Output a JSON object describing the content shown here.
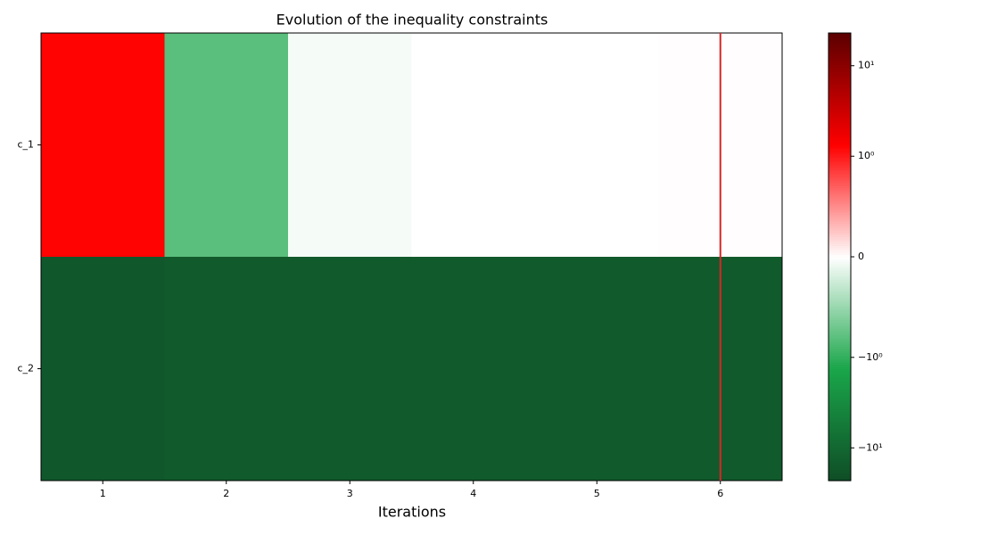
{
  "chart_data": {
    "type": "heatmap",
    "title": "Evolution of the inequality constraints",
    "xlabel": "Iterations",
    "x": [
      1,
      2,
      3,
      4,
      5,
      6
    ],
    "xlim": [
      0.5,
      6.5
    ],
    "xticks": [
      1,
      2,
      3,
      4,
      5,
      6
    ],
    "y_categories": [
      "c_1",
      "c_2"
    ],
    "values": [
      [
        1.3,
        -0.8,
        -0.05,
        0,
        0,
        0.01
      ],
      [
        -16,
        -15,
        -15,
        -15,
        -15,
        -15
      ]
    ],
    "colorbar_lim": [
      -23,
      23
    ],
    "colorbar_scale": "symlog",
    "linthresh": 1,
    "colorbar_ticks": [
      {
        "value": 10,
        "label": "10¹"
      },
      {
        "value": 1,
        "label": "10⁰"
      },
      0,
      {
        "value": -1,
        "label": "−10⁰"
      },
      {
        "value": -10,
        "label": "−10¹"
      }
    ],
    "colormap": [
      "#0f4d26",
      "#1aa64a",
      "#ffffff",
      "#ff0000",
      "#5c0000"
    ],
    "marker_x": 6,
    "marker_color": "#d62728"
  }
}
